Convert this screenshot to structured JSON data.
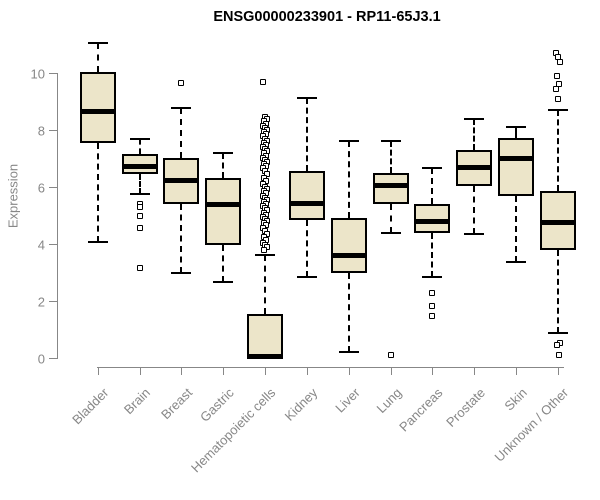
{
  "chart_data": {
    "type": "boxplot",
    "title": "ENSG00000233901 - RP11-65J3.1",
    "ylabel": "Expression",
    "xlabel": "",
    "yticks": [
      0,
      2,
      4,
      6,
      8,
      10
    ],
    "ylim": [
      -0.3,
      11.2
    ],
    "grid": "off",
    "legend": "none",
    "categories": [
      "Bladder",
      "Brain",
      "Breast",
      "Gastric",
      "Hematopoietic cells",
      "Kidney",
      "Liver",
      "Lung",
      "Pancreas",
      "Prostate",
      "Skin",
      "Unknown / Other"
    ],
    "boxes": [
      {
        "category": "Bladder",
        "whisker_low": 4.08,
        "q1": 7.53,
        "median": 8.64,
        "q3": 10.02,
        "whisker_high": 11.04,
        "outliers": []
      },
      {
        "category": "Brain",
        "whisker_low": 5.75,
        "q1": 6.45,
        "median": 6.71,
        "q3": 7.15,
        "whisker_high": 7.67,
        "outliers": [
          5.4,
          5.3,
          4.98,
          4.55,
          3.15
        ]
      },
      {
        "category": "Breast",
        "whisker_low": 2.97,
        "q1": 5.39,
        "median": 6.22,
        "q3": 7.01,
        "whisker_high": 8.78,
        "outliers": [
          9.64
        ]
      },
      {
        "category": "Gastric",
        "whisker_low": 2.68,
        "q1": 3.96,
        "median": 5.39,
        "q3": 6.33,
        "whisker_high": 7.18,
        "outliers": []
      },
      {
        "category": "Hematopoietic cells",
        "whisker_low": 0.0,
        "q1": 0.02,
        "median": 0.07,
        "q3": 1.54,
        "whisker_high": 3.61,
        "outliers": [
          9.67,
          8.45,
          8.38,
          8.3,
          8.22,
          8.15,
          8.08,
          8.0,
          7.92,
          7.85,
          7.78,
          7.7,
          7.62,
          7.55,
          7.48,
          7.4,
          7.32,
          7.25,
          7.18,
          7.1,
          7.02,
          6.95,
          6.88,
          6.8,
          6.72,
          6.65,
          6.55,
          6.45,
          6.3,
          6.2,
          6.1,
          6.0,
          5.92,
          5.85,
          5.78,
          5.7,
          5.62,
          5.55,
          5.48,
          5.4,
          5.32,
          5.25,
          5.18,
          5.1,
          5.02,
          4.95,
          4.88,
          4.8,
          4.72,
          4.65,
          4.55,
          4.45,
          4.35,
          4.25,
          4.15,
          4.05,
          3.95,
          3.88,
          3.8
        ]
      },
      {
        "category": "Kidney",
        "whisker_low": 2.85,
        "q1": 4.84,
        "median": 5.43,
        "q3": 6.57,
        "whisker_high": 9.11,
        "outliers": []
      },
      {
        "category": "Liver",
        "whisker_low": 0.22,
        "q1": 2.97,
        "median": 3.61,
        "q3": 4.92,
        "whisker_high": 7.62,
        "outliers": []
      },
      {
        "category": "Lung",
        "whisker_low": 4.37,
        "q1": 5.39,
        "median": 6.07,
        "q3": 6.5,
        "whisker_high": 7.61,
        "outliers": [
          0.11
        ]
      },
      {
        "category": "Pancreas",
        "whisker_low": 2.85,
        "q1": 4.37,
        "median": 4.78,
        "q3": 5.39,
        "whisker_high": 6.68,
        "outliers": [
          2.27,
          1.82,
          1.47
        ]
      },
      {
        "category": "Prostate",
        "whisker_low": 4.34,
        "q1": 6.04,
        "median": 6.68,
        "q3": 7.3,
        "whisker_high": 8.38,
        "outliers": []
      },
      {
        "category": "Skin",
        "whisker_low": 3.36,
        "q1": 5.69,
        "median": 7.01,
        "q3": 7.73,
        "whisker_high": 8.12,
        "outliers": []
      },
      {
        "category": "Unknown / Other",
        "whisker_low": 0.89,
        "q1": 3.79,
        "median": 4.75,
        "q3": 5.87,
        "whisker_high": 8.71,
        "outliers": [
          10.7,
          10.55,
          10.4,
          9.88,
          9.6,
          9.45,
          9.09,
          0.52,
          0.45,
          0.11
        ]
      }
    ],
    "colors": {
      "box_fill": "#ECE5C9",
      "box_border": "#000000",
      "median": "#000000",
      "axis": "#878787",
      "title": "#000000",
      "background": "#FFFFFF"
    }
  }
}
